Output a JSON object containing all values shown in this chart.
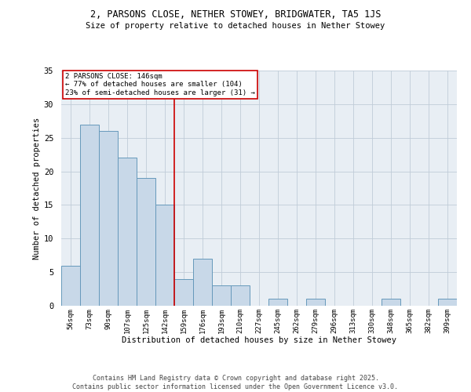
{
  "title_line1": "2, PARSONS CLOSE, NETHER STOWEY, BRIDGWATER, TA5 1JS",
  "title_line2": "Size of property relative to detached houses in Nether Stowey",
  "xlabel": "Distribution of detached houses by size in Nether Stowey",
  "ylabel": "Number of detached properties",
  "all_categories": [
    "56sqm",
    "73sqm",
    "90sqm",
    "107sqm",
    "125sqm",
    "142sqm",
    "159sqm",
    "176sqm",
    "193sqm",
    "210sqm",
    "227sqm",
    "245sqm",
    "262sqm",
    "279sqm",
    "296sqm",
    "313sqm",
    "330sqm",
    "348sqm",
    "365sqm",
    "382sqm",
    "399sqm"
  ],
  "all_values": [
    6,
    27,
    26,
    22,
    19,
    15,
    4,
    7,
    3,
    3,
    0,
    1,
    0,
    1,
    0,
    0,
    0,
    1,
    0,
    0,
    1
  ],
  "bar_color": "#c8d8e8",
  "bar_edge_color": "#6699bb",
  "vline_color": "#cc0000",
  "annotation_title": "2 PARSONS CLOSE: 146sqm",
  "annotation_line2": "← 77% of detached houses are smaller (104)",
  "annotation_line3": "23% of semi-detached houses are larger (31) →",
  "annotation_box_color": "#cc0000",
  "grid_color": "#c0ccd8",
  "bg_color": "#e8eef4",
  "ylim": [
    0,
    35
  ],
  "yticks": [
    0,
    5,
    10,
    15,
    20,
    25,
    30,
    35
  ],
  "footer_line1": "Contains HM Land Registry data © Crown copyright and database right 2025.",
  "footer_line2": "Contains public sector information licensed under the Open Government Licence v3.0."
}
